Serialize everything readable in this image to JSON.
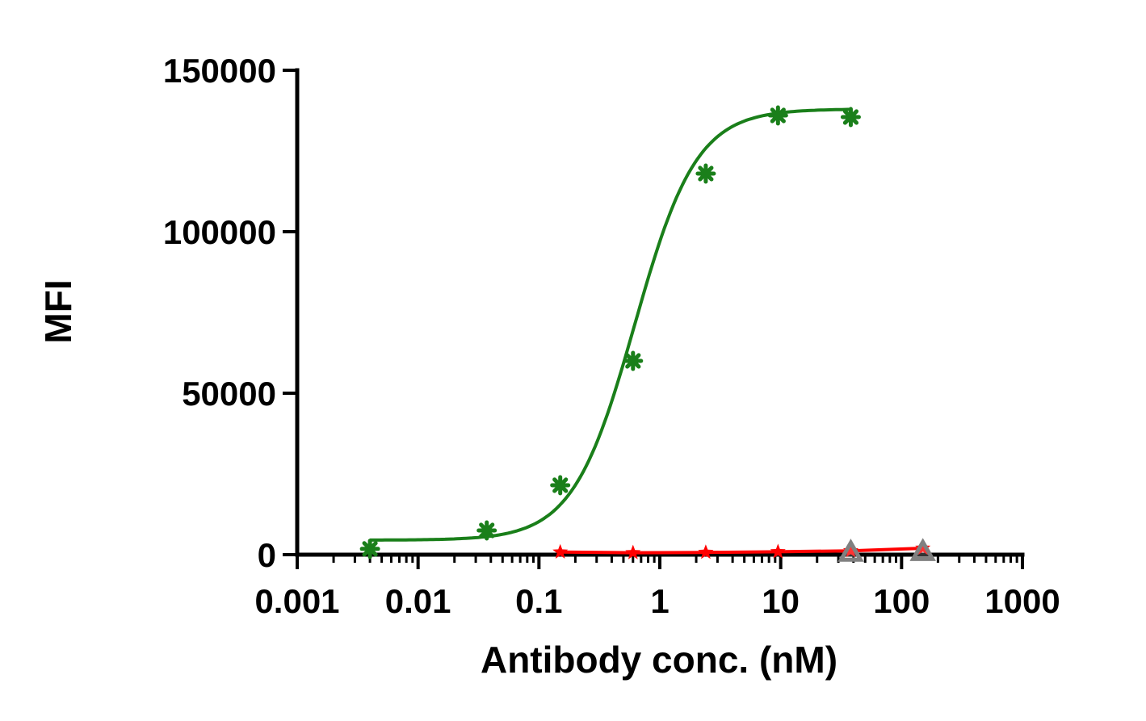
{
  "chart_data": {
    "type": "scatter",
    "title": "",
    "xlabel": "Antibody conc. (nM)",
    "ylabel": "MFI",
    "xscale": "log",
    "xlim": [
      0.001,
      1000
    ],
    "ylim": [
      0,
      150000
    ],
    "x_ticks": [
      0.001,
      0.01,
      0.1,
      1,
      10,
      100,
      1000
    ],
    "x_tick_labels": [
      "0.001",
      "0.01",
      "0.1",
      "1",
      "10",
      "100",
      "1000"
    ],
    "y_ticks": [
      0,
      50000,
      100000,
      150000
    ],
    "y_tick_labels": [
      "0",
      "50000",
      "100000",
      "150000"
    ],
    "grid": false,
    "legend": "none",
    "series": [
      {
        "marker": "asterisk",
        "color": "#1a7f1a",
        "points": [
          {
            "x": 0.004,
            "y": 1800
          },
          {
            "x": 0.037,
            "y": 7500
          },
          {
            "x": 0.15,
            "y": 21500
          },
          {
            "x": 0.6,
            "y": 60000
          },
          {
            "x": 2.4,
            "y": 118000
          },
          {
            "x": 9.5,
            "y": 136000
          },
          {
            "x": 38,
            "y": 135500
          }
        ],
        "fit": {
          "model": "4PL",
          "bottom": 4500,
          "top": 138000,
          "ec50": 0.62,
          "hill": 1.7,
          "x_range": [
            0.004,
            38
          ]
        }
      },
      {
        "marker": "star",
        "color": "#ff0000",
        "points": [
          {
            "x": 0.15,
            "y": 800
          },
          {
            "x": 0.6,
            "y": 600
          },
          {
            "x": 2.4,
            "y": 700
          },
          {
            "x": 9.5,
            "y": 900
          },
          {
            "x": 38,
            "y": 1200
          },
          {
            "x": 150,
            "y": 2000
          }
        ]
      },
      {
        "marker": "triangle",
        "color": "#808080",
        "points": [
          {
            "x": 38,
            "y": 700
          },
          {
            "x": 150,
            "y": 900
          }
        ]
      }
    ]
  }
}
